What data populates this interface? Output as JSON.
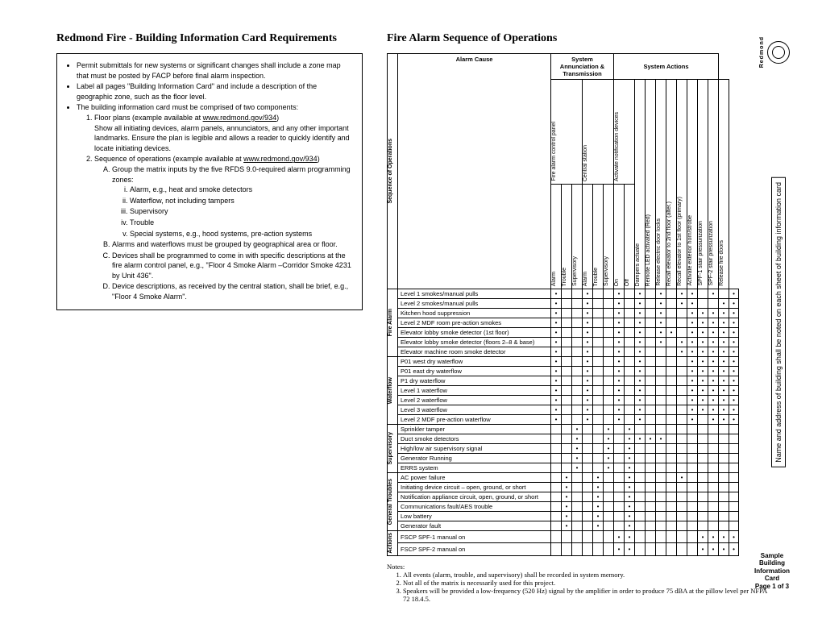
{
  "left": {
    "title": "Redmond Fire - Building Information Card Requirements",
    "bullets": [
      "Permit submittals for new systems or significant changes shall include a zone map that must be posted by FACP before final alarm inspection.",
      "Label all pages \"Building Information Card\" and include a description of the geographic zone, such as the floor level.",
      "The building information card must be comprised of two components:"
    ],
    "num1": "Floor plans (example available at ",
    "num1_link": "www.redmond.gov/934",
    "num1_after": ")",
    "num1_body": "Show all initiating devices, alarm panels, annunciators, and any other important landmarks. Ensure the plan is legible and allows a reader to quickly identify and locate initiating devices.",
    "num2": "Sequence of operations (example available at ",
    "num2_link": "www.redmond.gov/934",
    "num2_after": ")",
    "letA": "Group the matrix inputs by the five RFDS 9.0-required alarm programming zones:",
    "romans": [
      "Alarm, e.g., heat and smoke detectors",
      "Waterflow, not including tampers",
      "Supervisory",
      "Trouble",
      "Special systems, e.g., hood systems, pre-action systems"
    ],
    "letB": "Alarms and waterflows must be grouped by geographical area or floor.",
    "letC": "Devices shall be programmed to come in with specific descriptions at the fire alarm control panel, e.g., \"Floor 4 Smoke Alarm –Corridor Smoke 4231 by Unit 436\".",
    "letD": "Device descriptions, as received by the central station, shall be brief, e.g., \"Floor 4 Smoke Alarm\"."
  },
  "right": {
    "title": "Fire Alarm Sequence of Operations",
    "groupHeaders": [
      "Alarm Cause",
      "System Annunciation & Transmission",
      "System Actions"
    ],
    "vertLabel": "Sequence of Operations",
    "colHeaders": [
      "Fire alarm control panel",
      "",
      "Central station",
      "",
      "Activate notification devices",
      "",
      "",
      "Dampers actuate",
      "Remote LED activated (Red)",
      "Release electric door locks",
      "Recall elevator to 2nd floor (alter.)",
      "Recall elevator to 1st floor (primary)",
      "Activate exterior horn/strobe",
      "SPF-1 stair pressurization",
      "SPF-2 stair pressurization",
      "Release fire doors"
    ],
    "subHeaders": [
      "Alarm",
      "Trouble",
      "Supervisory",
      "Alarm",
      "Trouble",
      "Supervisory",
      "On",
      "Off"
    ],
    "rowGroups": [
      {
        "label": "Fire Alarm",
        "rows": [
          {
            "name": "Level 1 smokes/manual pulls",
            "dots": [
              1,
              0,
              0,
              1,
              0,
              0,
              1,
              0,
              1,
              0,
              1,
              0,
              1,
              1,
              0,
              1,
              0,
              1
            ]
          },
          {
            "name": "Level 2 smokes/manual pulls",
            "dots": [
              1,
              0,
              0,
              1,
              0,
              0,
              1,
              0,
              1,
              0,
              1,
              0,
              1,
              1,
              0,
              0,
              1,
              1
            ]
          },
          {
            "name": "Kitchen hood suppression",
            "dots": [
              1,
              0,
              0,
              1,
              0,
              0,
              1,
              0,
              1,
              0,
              1,
              0,
              0,
              1,
              1,
              1,
              1,
              1
            ]
          },
          {
            "name": "Level 2 MDF room pre-action smokes",
            "dots": [
              1,
              0,
              0,
              1,
              0,
              0,
              1,
              0,
              1,
              0,
              1,
              0,
              0,
              1,
              1,
              1,
              1,
              1
            ]
          },
          {
            "name": "Elevator lobby smoke detector (1st floor)",
            "dots": [
              1,
              0,
              0,
              1,
              0,
              0,
              1,
              0,
              1,
              0,
              1,
              1,
              0,
              1,
              1,
              1,
              1,
              1
            ]
          },
          {
            "name": "Elevator lobby smoke detector (floors 2–8 & base)",
            "dots": [
              1,
              0,
              0,
              1,
              0,
              0,
              1,
              0,
              1,
              0,
              1,
              0,
              1,
              1,
              1,
              1,
              1,
              1
            ]
          },
          {
            "name": "Elevator machine room smoke detector",
            "dots": [
              1,
              0,
              0,
              1,
              0,
              0,
              1,
              0,
              1,
              0,
              0,
              0,
              1,
              1,
              1,
              1,
              1,
              1
            ]
          }
        ]
      },
      {
        "label": "Waterflow",
        "rows": [
          {
            "name": "P01 west dry waterflow",
            "dots": [
              1,
              0,
              0,
              1,
              0,
              0,
              1,
              0,
              1,
              0,
              0,
              0,
              0,
              1,
              1,
              1,
              1,
              1
            ]
          },
          {
            "name": "P01 east dry waterflow",
            "dots": [
              1,
              0,
              0,
              1,
              0,
              0,
              1,
              0,
              1,
              0,
              0,
              0,
              0,
              1,
              1,
              1,
              1,
              1
            ]
          },
          {
            "name": "P1 dry waterflow",
            "dots": [
              1,
              0,
              0,
              1,
              0,
              0,
              1,
              0,
              1,
              0,
              0,
              0,
              0,
              1,
              1,
              1,
              1,
              1
            ]
          },
          {
            "name": "Level 1 waterflow",
            "dots": [
              1,
              0,
              0,
              1,
              0,
              0,
              1,
              0,
              1,
              0,
              0,
              0,
              0,
              1,
              1,
              1,
              1,
              1
            ]
          },
          {
            "name": "Level 2 waterflow",
            "dots": [
              1,
              0,
              0,
              1,
              0,
              0,
              1,
              0,
              1,
              0,
              0,
              0,
              0,
              1,
              1,
              1,
              1,
              1
            ]
          },
          {
            "name": "Level 3 waterflow",
            "dots": [
              1,
              0,
              0,
              1,
              0,
              0,
              1,
              0,
              1,
              0,
              0,
              0,
              0,
              1,
              1,
              1,
              1,
              1
            ]
          },
          {
            "name": "Level 2 MDF pre-action waterflow",
            "dots": [
              1,
              0,
              0,
              1,
              0,
              0,
              1,
              0,
              1,
              0,
              0,
              0,
              0,
              1,
              0,
              1,
              1,
              1
            ]
          }
        ]
      },
      {
        "label": "Supervisory",
        "rows": [
          {
            "name": "Sprinkler tamper",
            "dots": [
              0,
              0,
              1,
              0,
              0,
              1,
              0,
              1,
              0,
              0,
              0,
              0,
              0,
              0,
              0,
              0,
              0,
              0
            ]
          },
          {
            "name": "Duct smoke detectors",
            "dots": [
              0,
              0,
              1,
              0,
              0,
              1,
              0,
              1,
              1,
              1,
              1,
              0,
              0,
              0,
              0,
              0,
              0,
              0
            ]
          },
          {
            "name": "High/low air supervisory signal",
            "dots": [
              0,
              0,
              1,
              0,
              0,
              1,
              0,
              1,
              0,
              0,
              0,
              0,
              0,
              0,
              0,
              0,
              0,
              0
            ]
          },
          {
            "name": "Generator Running",
            "dots": [
              0,
              0,
              1,
              0,
              0,
              1,
              0,
              1,
              0,
              0,
              0,
              0,
              0,
              0,
              0,
              0,
              0,
              0
            ]
          },
          {
            "name": "ERRS system",
            "dots": [
              0,
              0,
              1,
              0,
              0,
              1,
              0,
              1,
              0,
              0,
              0,
              0,
              0,
              0,
              0,
              0,
              0,
              0
            ]
          }
        ]
      },
      {
        "label": "General Troubles",
        "rows": [
          {
            "name": "AC power failure",
            "dots": [
              0,
              1,
              0,
              0,
              1,
              0,
              0,
              1,
              0,
              0,
              0,
              0,
              1,
              0,
              0,
              0,
              0,
              0
            ]
          },
          {
            "name": "Initiating device circuit – open, ground, or short",
            "dots": [
              0,
              1,
              0,
              0,
              1,
              0,
              0,
              1,
              0,
              0,
              0,
              0,
              0,
              0,
              0,
              0,
              0,
              0
            ]
          },
          {
            "name": "Notification appliance circuit, open, ground, or short",
            "dots": [
              0,
              1,
              0,
              0,
              1,
              0,
              0,
              1,
              0,
              0,
              0,
              0,
              0,
              0,
              0,
              0,
              0,
              0
            ]
          },
          {
            "name": "Communications fault/AES trouble",
            "dots": [
              0,
              1,
              0,
              0,
              1,
              0,
              0,
              1,
              0,
              0,
              0,
              0,
              0,
              0,
              0,
              0,
              0,
              0
            ]
          },
          {
            "name": "Low battery",
            "dots": [
              0,
              1,
              0,
              0,
              1,
              0,
              0,
              1,
              0,
              0,
              0,
              0,
              0,
              0,
              0,
              0,
              0,
              0
            ]
          },
          {
            "name": "Generator fault",
            "dots": [
              0,
              1,
              0,
              0,
              1,
              0,
              0,
              1,
              0,
              0,
              0,
              0,
              0,
              0,
              0,
              0,
              0,
              0
            ]
          }
        ]
      },
      {
        "label": "Actions",
        "rows": [
          {
            "name": "FSCP SPF-1 manual on",
            "dots": [
              0,
              0,
              0,
              0,
              0,
              0,
              1,
              1,
              0,
              0,
              0,
              0,
              0,
              0,
              1,
              1,
              1,
              1
            ]
          },
          {
            "name": "FSCP SPF-2 manual on",
            "dots": [
              0,
              0,
              0,
              0,
              0,
              0,
              1,
              1,
              0,
              0,
              0,
              0,
              0,
              0,
              1,
              1,
              1,
              1
            ]
          }
        ]
      }
    ],
    "sideNote": "Name and address of building shall be noted on each sheet of building information card",
    "notesTitle": "Notes:",
    "notes": [
      "All events (alarm, trouble, and supervisory) shall be recorded in system memory.",
      "Not all of the matrix is necessarily used for this project.",
      "Speakers will be provided a low-frequency (520 Hz) signal by the amplifier in order to produce 75 dBA at the pillow level per NFPA 72 18.4.5."
    ]
  },
  "footer": {
    "l1": "Sample",
    "l2": "Building",
    "l3": "Information",
    "l4": "Card",
    "l5": "Page 1 of 3"
  },
  "logo": "Redmond"
}
